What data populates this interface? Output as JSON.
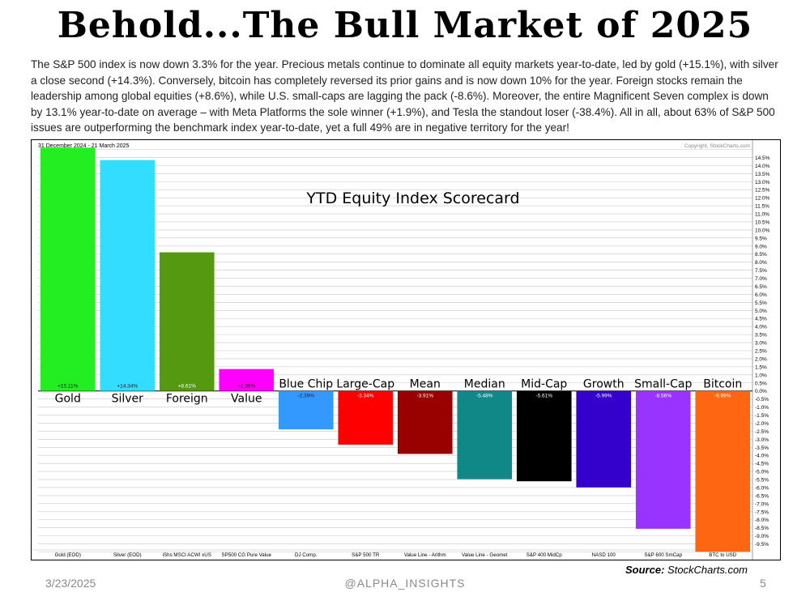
{
  "header": {
    "title": "Behold...The Bull Market of 2025",
    "body": "The S&P 500 index is now down 3.3% for the year. Precious metals continue to dominate all equity markets year-to-date, led by gold (+15.1%), with silver a close second (+14.3%). Conversely, bitcoin has completely reversed its prior gains and is now down 10% for the year. Foreign stocks remain the leadership among global equities (+8.6%), while U.S. small-caps are lagging the pack (-8.6%). Moreover, the entire Magnificent Seven complex is down by 13.1% year-to-date on average – with Meta Platforms the sole winner (+1.9%), and Tesla the standout loser (-38.4%). All in all, about 63% of S&P 500 issues are outperforming the benchmark index year-to-date, yet a full 49% are in negative territory for the year!"
  },
  "chart_meta": {
    "date_range": "31 December 2024 - 21 March 2025",
    "copyright": "Copyright, StockCharts.com"
  },
  "chart_data": {
    "type": "bar",
    "title": "YTD Equity Index Scorecard",
    "categories": [
      "Gold",
      "Silver",
      "Foreign",
      "Value",
      "Blue Chip",
      "Large-Cap",
      "Mean",
      "Median",
      "Mid-Cap",
      "Growth",
      "Small-Cap",
      "Bitcoin"
    ],
    "source_labels": [
      "Gold (EOD)",
      "Silver (EOD)",
      "iShs MSCI ACWI xUS",
      "SP500 CG Pure Value",
      "DJ Comp.",
      "S&P 500 TR",
      "Value Line - Arithm",
      "Value Line - Geomet",
      "S&P 400 MidCp",
      "NASD 100",
      "S&P 600 SmCap",
      "BTC to USD"
    ],
    "values": [
      15.11,
      14.34,
      8.61,
      1.36,
      -2.39,
      -3.34,
      -3.91,
      -5.48,
      -5.61,
      -5.99,
      -8.56,
      -9.99
    ],
    "value_labels": [
      "+15.11%",
      "+14.34%",
      "+8.61%",
      "+1.36%",
      "-2.39%",
      "-3.34%",
      "-3.91%",
      "-5.48%",
      "-5.61%",
      "-5.99%",
      "-8.56%",
      "-9.99%"
    ],
    "colors": [
      "#22ee22",
      "#33ddff",
      "#559911",
      "#ff00ff",
      "#3399ff",
      "#ff0000",
      "#990000",
      "#118888",
      "#000000",
      "#3300cc",
      "#9933ff",
      "#ff6611"
    ],
    "ylim": [
      -10,
      15
    ],
    "ytick_step": 0.5,
    "grid": true,
    "axis_side": "right"
  },
  "footer": {
    "date": "3/23/2025",
    "handle": "@ALPHA_INSIGHTS",
    "page": "5",
    "source_label": "Source:",
    "source_value": "StockCharts.com"
  }
}
